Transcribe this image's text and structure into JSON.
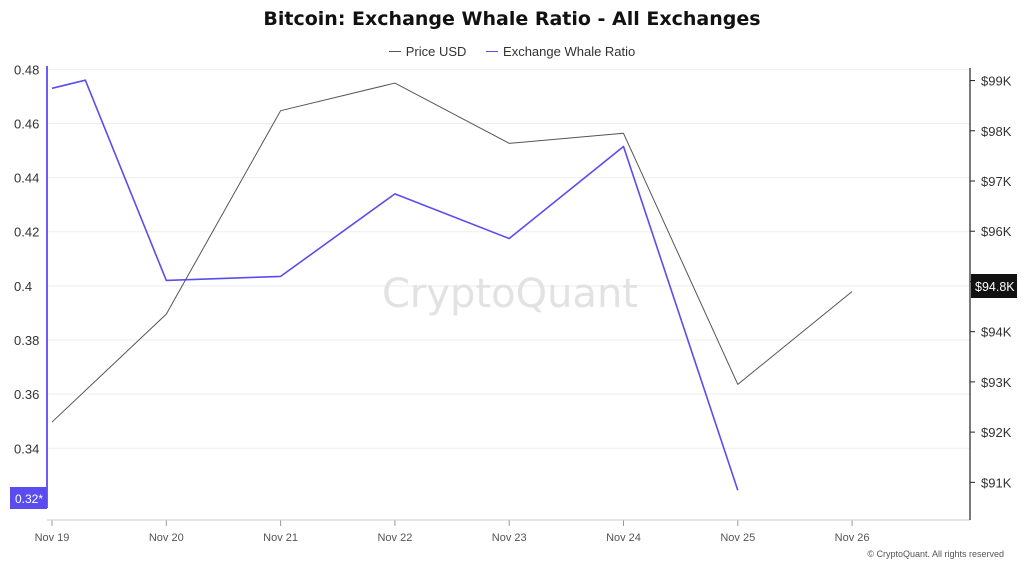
{
  "chart_data": {
    "type": "line",
    "title": "Bitcoin: Exchange Whale Ratio - All Exchanges",
    "x": [
      "2024-11-19",
      "2024-11-19T07:00",
      "2024-11-20",
      "2024-11-21",
      "2024-11-22",
      "2024-11-23",
      "2024-11-24",
      "2024-11-25",
      "2024-11-26"
    ],
    "x_tick_labels": [
      "Nov 19",
      "Nov 20",
      "Nov 21",
      "Nov 22",
      "Nov 23",
      "Nov 24",
      "Nov 25",
      "Nov 26"
    ],
    "series": [
      {
        "name": "Price USD",
        "axis": "right",
        "color": "#555555",
        "values": [
          92200,
          null,
          94350,
          98400,
          98950,
          97750,
          97950,
          92950,
          94800
        ]
      },
      {
        "name": "Exchange Whale Ratio",
        "axis": "left",
        "color": "#5b4cf0",
        "values": [
          0.473,
          0.476,
          0.402,
          0.4035,
          0.434,
          0.4175,
          0.4515,
          0.3245,
          null
        ]
      }
    ],
    "y_left": {
      "ticks": [
        0.34,
        0.36,
        0.38,
        0.4,
        0.42,
        0.44,
        0.46,
        0.48
      ],
      "tick_labels": [
        "0.34",
        "0.36",
        "0.38",
        "0.4",
        "0.42",
        "0.44",
        "0.46",
        "0.48"
      ],
      "range": [
        0.3135,
        0.4805
      ]
    },
    "y_right": {
      "ticks": [
        91000,
        92000,
        93000,
        94000,
        95000,
        96000,
        97000,
        98000,
        99000
      ],
      "tick_labels": [
        "$91K",
        "$92K",
        "$93K",
        "$94K",
        "$95K",
        "$96K",
        "$97K",
        "$98K",
        "$99K"
      ],
      "range": [
        90250,
        99250
      ]
    },
    "left_marker_label": "0.32*",
    "right_marker_label": "$94.8K",
    "grid": true,
    "legend_position": "top-center",
    "watermark": "CryptoQuant"
  },
  "footer": {
    "credit": "© CryptoQuant. All rights reserved"
  }
}
